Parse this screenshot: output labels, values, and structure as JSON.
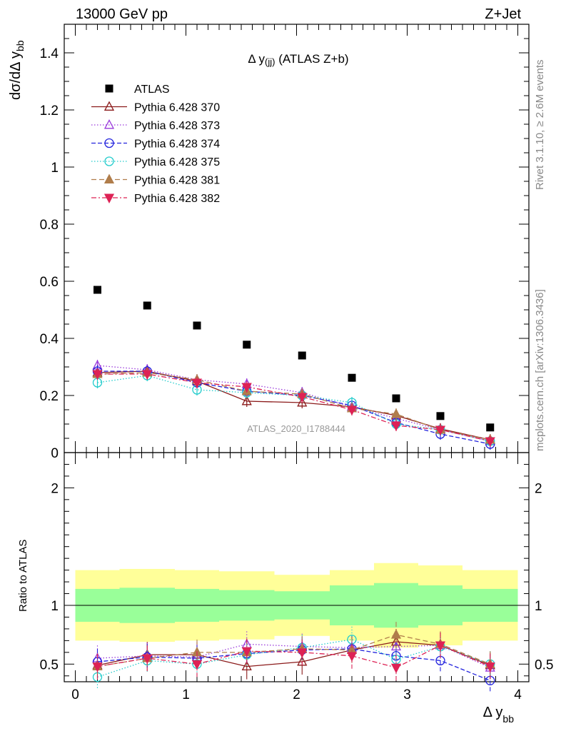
{
  "header": {
    "left": "13000 GeV pp",
    "right": "Z+Jet"
  },
  "side": {
    "rivet": "Rivet 3.1.10, ≥ 2.6M events",
    "mcplots": "mcplots.cern.ch [arXiv:1306.3436]"
  },
  "watermark": "ATLAS_2020_I1788444",
  "colors": {
    "data": "#000000",
    "band_inner": "#99ff99",
    "band_outer": "#ffff99"
  },
  "chart_data": {
    "type": "scatter",
    "title_main": "Δ y",
    "title_sub": "(jj)",
    "title_rest": " (ATLAS Z+b)",
    "ylabel_main": "dσ/dΔ y",
    "ylabel_sub": "bb",
    "xlabel_main": "Δ y",
    "xlabel_sub": "bb",
    "ratio_ylabel": "Ratio to ATLAS",
    "xlim": [
      -0.1,
      4.1
    ],
    "ylim": [
      0,
      1.5
    ],
    "ratio_ylim": [
      0.35,
      2.3
    ],
    "x_ticks": [
      "0",
      "1",
      "2",
      "3",
      "4"
    ],
    "y_ticks": [
      "0",
      "0.2",
      "0.4",
      "0.6",
      "0.8",
      "1",
      "1.2",
      "1.4"
    ],
    "ratio_ticks": [
      "0.5",
      "1",
      "2"
    ],
    "x": [
      0.2,
      0.65,
      1.1,
      1.55,
      2.05,
      2.5,
      2.9,
      3.3,
      3.75
    ],
    "bin_edges": [
      0,
      0.4,
      0.9,
      1.3,
      1.8,
      2.3,
      2.7,
      3.1,
      3.5,
      4.0
    ],
    "band_inner": [
      0.14,
      0.15,
      0.14,
      0.13,
      0.12,
      0.17,
      0.19,
      0.17,
      0.14
    ],
    "band_outer": [
      0.3,
      0.31,
      0.3,
      0.29,
      0.26,
      0.3,
      0.36,
      0.34,
      0.3
    ],
    "data": {
      "name": "ATLAS",
      "values": [
        0.57,
        0.515,
        0.445,
        0.378,
        0.34,
        0.262,
        0.19,
        0.128,
        0.088
      ]
    },
    "series": [
      {
        "name": "Pythia 6.428 370",
        "color": "#8b1a1a",
        "dash": "",
        "marker": "triangle-up-open",
        "values": [
          0.28,
          0.285,
          0.25,
          0.18,
          0.175,
          0.16,
          0.13,
          0.083,
          0.045
        ],
        "ratio": [
          0.49,
          0.58,
          0.58,
          0.48,
          0.52,
          0.62,
          0.69,
          0.66,
          0.49
        ]
      },
      {
        "name": "Pythia 6.428 373",
        "color": "#9a3adb",
        "dash": "1.5,2.5",
        "marker": "triangle-up-open",
        "values": [
          0.305,
          0.29,
          0.255,
          0.24,
          0.21,
          0.16,
          0.12,
          0.08,
          0.04
        ],
        "ratio": [
          0.55,
          0.57,
          0.56,
          0.67,
          0.65,
          0.64,
          0.65,
          0.66,
          0.47
        ]
      },
      {
        "name": "Pythia 6.428 374",
        "color": "#2222dd",
        "dash": "6,3",
        "marker": "circle-open",
        "values": [
          0.285,
          0.285,
          0.245,
          0.215,
          0.2,
          0.165,
          0.105,
          0.065,
          0.03
        ],
        "ratio": [
          0.52,
          0.56,
          0.55,
          0.59,
          0.62,
          0.63,
          0.57,
          0.53,
          0.36
        ]
      },
      {
        "name": "Pythia 6.428 375",
        "color": "#22cccc",
        "dash": "1.5,2.5",
        "marker": "circle-open",
        "values": [
          0.245,
          0.27,
          0.22,
          0.21,
          0.2,
          0.175,
          0.1,
          0.08,
          0.04
        ],
        "ratio": [
          0.39,
          0.53,
          0.5,
          0.58,
          0.64,
          0.71,
          0.54,
          0.65,
          0.5
        ]
      },
      {
        "name": "Pythia 6.428 381",
        "color": "#b07d4b",
        "dash": "7,4",
        "marker": "triangle-up-filled",
        "values": [
          0.275,
          0.28,
          0.255,
          0.215,
          0.205,
          0.155,
          0.135,
          0.08,
          0.045
        ],
        "ratio": [
          0.48,
          0.55,
          0.6,
          0.6,
          0.63,
          0.62,
          0.75,
          0.67,
          0.5
        ]
      },
      {
        "name": "Pythia 6.428 382",
        "color": "#dd2255",
        "dash": "7,3,2,3",
        "marker": "triangle-down-filled",
        "values": [
          0.275,
          0.275,
          0.245,
          0.23,
          0.195,
          0.15,
          0.095,
          0.08,
          0.04
        ],
        "ratio": [
          0.48,
          0.55,
          0.5,
          0.61,
          0.6,
          0.57,
          0.47,
          0.66,
          0.48
        ]
      }
    ]
  }
}
